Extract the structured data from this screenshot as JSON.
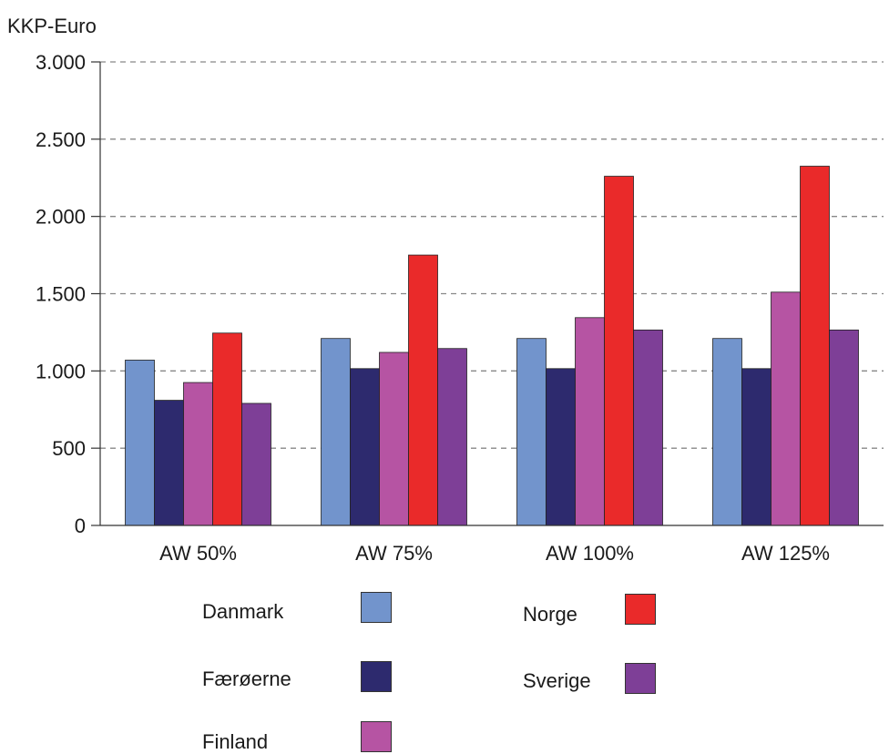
{
  "chart_data": {
    "type": "bar",
    "ylabel": "KKP-Euro",
    "ylim": [
      0,
      3000
    ],
    "yticks": [
      0,
      500,
      1000,
      1500,
      2000,
      2500,
      3000
    ],
    "ytick_labels": [
      "0",
      "500",
      "1.000",
      "1.500",
      "2.000",
      "2.500",
      "3.000"
    ],
    "grid": "horizontal-dashed",
    "categories": [
      "AW 50%",
      "AW 75%",
      "AW 100%",
      "AW 125%"
    ],
    "series": [
      {
        "name": "Danmark",
        "color": "#7294cc",
        "values": [
          1070,
          1210,
          1210,
          1210
        ]
      },
      {
        "name": "Færøerne",
        "color": "#2d2a6e",
        "values": [
          810,
          1015,
          1015,
          1015
        ]
      },
      {
        "name": "Finland",
        "color": "#b654a3",
        "values": [
          925,
          1120,
          1345,
          1510
        ]
      },
      {
        "name": "Norge",
        "color": "#ea2a2a",
        "values": [
          1245,
          1750,
          2260,
          2325
        ]
      },
      {
        "name": "Sverige",
        "color": "#7e3f97",
        "values": [
          790,
          1145,
          1265,
          1265
        ]
      }
    ],
    "legend_position": "bottom"
  }
}
